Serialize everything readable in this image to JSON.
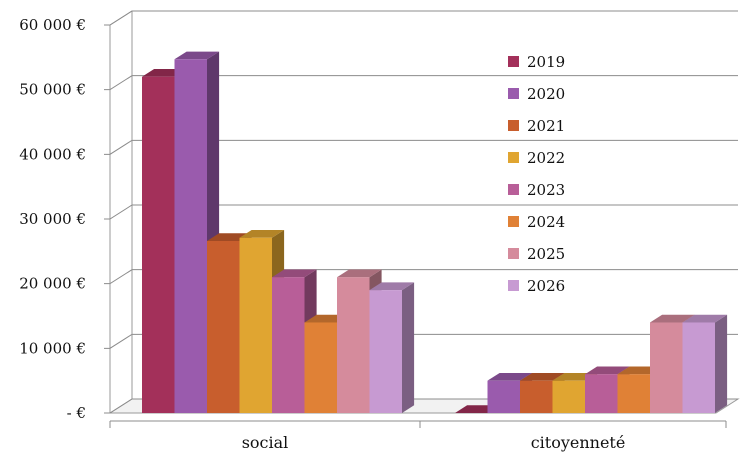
{
  "chart_data": {
    "type": "bar",
    "three_d": true,
    "categories": [
      "social",
      "citoyenneté"
    ],
    "series": [
      {
        "name": "2019",
        "values": [
          52000,
          0
        ],
        "color": "#a3305a"
      },
      {
        "name": "2020",
        "values": [
          54700,
          5000
        ],
        "color": "#9a5bad"
      },
      {
        "name": "2021",
        "values": [
          26600,
          5000
        ],
        "color": "#c85e2d"
      },
      {
        "name": "2022",
        "values": [
          27100,
          5000
        ],
        "color": "#e0a531"
      },
      {
        "name": "2023",
        "values": [
          21000,
          6000
        ],
        "color": "#b85e98"
      },
      {
        "name": "2024",
        "values": [
          14000,
          6000
        ],
        "color": "#e08136"
      },
      {
        "name": "2025",
        "values": [
          21000,
          14000
        ],
        "color": "#d58b9c"
      },
      {
        "name": "2026",
        "values": [
          19000,
          14000
        ],
        "color": "#c79ad2"
      }
    ],
    "y_ticks": [
      "-   €",
      "10 000 €",
      "20 000 €",
      "30 000 €",
      "40 000 €",
      "50 000 €",
      "60 000 €"
    ],
    "ylim": [
      0,
      60000
    ],
    "grid": true,
    "legend_position": "right",
    "title": "",
    "xlabel": "",
    "ylabel": ""
  }
}
